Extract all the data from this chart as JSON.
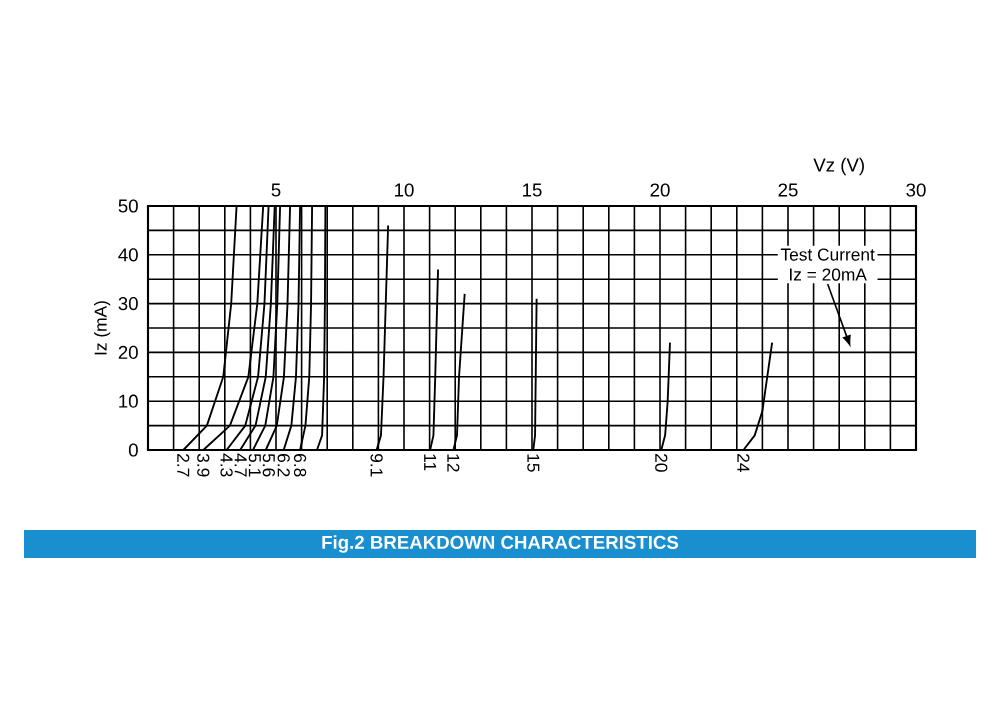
{
  "chart_data": {
    "type": "line",
    "title": "Fig.2 BREAKDOWN CHARACTERISTICS",
    "xlabel": "Vz (V)",
    "ylabel": "Iz (mA)",
    "xlim": [
      0,
      30
    ],
    "ylim": [
      0,
      50
    ],
    "xticks": [
      {
        "value": 0,
        "label": null
      },
      {
        "value": 1,
        "label": null
      },
      {
        "value": 2,
        "label": null
      },
      {
        "value": 3,
        "label": null
      },
      {
        "value": 4,
        "label": null
      },
      5,
      {
        "value": 6,
        "label": null
      },
      {
        "value": 7,
        "label": null
      },
      {
        "value": 8,
        "label": null
      },
      {
        "value": 9,
        "label": null
      },
      10,
      {
        "value": 11,
        "label": null
      },
      {
        "value": 12,
        "label": null
      },
      {
        "value": 13,
        "label": null
      },
      {
        "value": 14,
        "label": null
      },
      15,
      {
        "value": 16,
        "label": null
      },
      {
        "value": 17,
        "label": null
      },
      {
        "value": 18,
        "label": null
      },
      {
        "value": 19,
        "label": null
      },
      20,
      {
        "value": 21,
        "label": null
      },
      {
        "value": 22,
        "label": null
      },
      {
        "value": 23,
        "label": null
      },
      {
        "value": 24,
        "label": null
      },
      25,
      {
        "value": 26,
        "label": null
      },
      {
        "value": 27,
        "label": null
      },
      {
        "value": 28,
        "label": null
      },
      {
        "value": 29,
        "label": null
      },
      30
    ],
    "yticks": [
      0,
      {
        "value": 5,
        "label": null
      },
      10,
      {
        "value": 15,
        "label": null
      },
      20,
      {
        "value": 25,
        "label": null
      },
      30,
      {
        "value": 35,
        "label": null
      },
      40,
      {
        "value": 45,
        "label": null
      },
      50
    ],
    "grid": true,
    "annotations": [
      "Test Current",
      "Iz = 20mA"
    ],
    "series": [
      {
        "name": "2.7",
        "color": "#000000",
        "x": [
          1.38,
          2.3,
          2.94,
          3.25,
          3.46
        ],
        "values": [
          0,
          5,
          15,
          30,
          50
        ]
      },
      {
        "name": "3.9",
        "color": "#000000",
        "x": [
          2.16,
          3.2,
          3.92,
          4.27,
          4.5
        ],
        "values": [
          0,
          5,
          15,
          30,
          50
        ]
      },
      {
        "name": "4.3",
        "color": "#000000",
        "x": [
          3.07,
          3.8,
          4.3,
          4.55,
          4.71
        ],
        "values": [
          0,
          5,
          15,
          30,
          50
        ]
      },
      {
        "name": "4.7",
        "color": "#000000",
        "x": [
          3.6,
          4.2,
          4.6,
          4.8,
          4.95
        ],
        "values": [
          0,
          5,
          15,
          30,
          50
        ]
      },
      {
        "name": "5.1",
        "color": "#000000",
        "x": [
          4.1,
          4.58,
          4.9,
          5.05,
          5.16
        ],
        "values": [
          0,
          5,
          15,
          30,
          50
        ]
      },
      {
        "name": "5.6",
        "color": "#000000",
        "x": [
          4.6,
          5.03,
          5.31,
          5.45,
          5.55
        ],
        "values": [
          0,
          5,
          15,
          30,
          50
        ]
      },
      {
        "name": "6.2",
        "color": "#000000",
        "x": [
          5.3,
          5.6,
          5.78,
          5.88,
          5.94
        ],
        "values": [
          0,
          5,
          15,
          30,
          50
        ]
      },
      {
        "name": "6.8",
        "color": "#000000",
        "x": [
          5.94,
          6.15,
          6.3,
          6.37,
          6.41
        ],
        "values": [
          0,
          5,
          15,
          30,
          50
        ]
      },
      {
        "color": "#000000",
        "x": [
          6.6,
          6.8,
          6.88,
          6.91,
          6.93
        ],
        "values": [
          0,
          3,
          15,
          30,
          50
        ]
      },
      {
        "name": "9.1",
        "color": "#000000",
        "x": [
          8.93,
          9.1,
          9.2,
          9.38
        ],
        "values": [
          0,
          3,
          15,
          46
        ]
      },
      {
        "name": "11",
        "color": "#000000",
        "x": [
          11.02,
          11.15,
          11.22,
          11.33
        ],
        "values": [
          0,
          3,
          15,
          37
        ]
      },
      {
        "name": "12",
        "color": "#000000",
        "x": [
          11.93,
          12.07,
          12.15,
          12.37
        ],
        "values": [
          0,
          3,
          15,
          32
        ]
      },
      {
        "name": "15",
        "color": "#000000",
        "x": [
          15.05,
          15.12,
          15.18
        ],
        "values": [
          0,
          3,
          31
        ]
      },
      {
        "name": "20",
        "color": "#000000",
        "x": [
          20.05,
          20.2,
          20.3,
          20.39
        ],
        "values": [
          0,
          3,
          10,
          22
        ]
      },
      {
        "name": "24",
        "color": "#000000",
        "x": [
          23.26,
          23.7,
          24.0,
          24.38
        ],
        "values": [
          0,
          3,
          8,
          22
        ]
      }
    ]
  }
}
